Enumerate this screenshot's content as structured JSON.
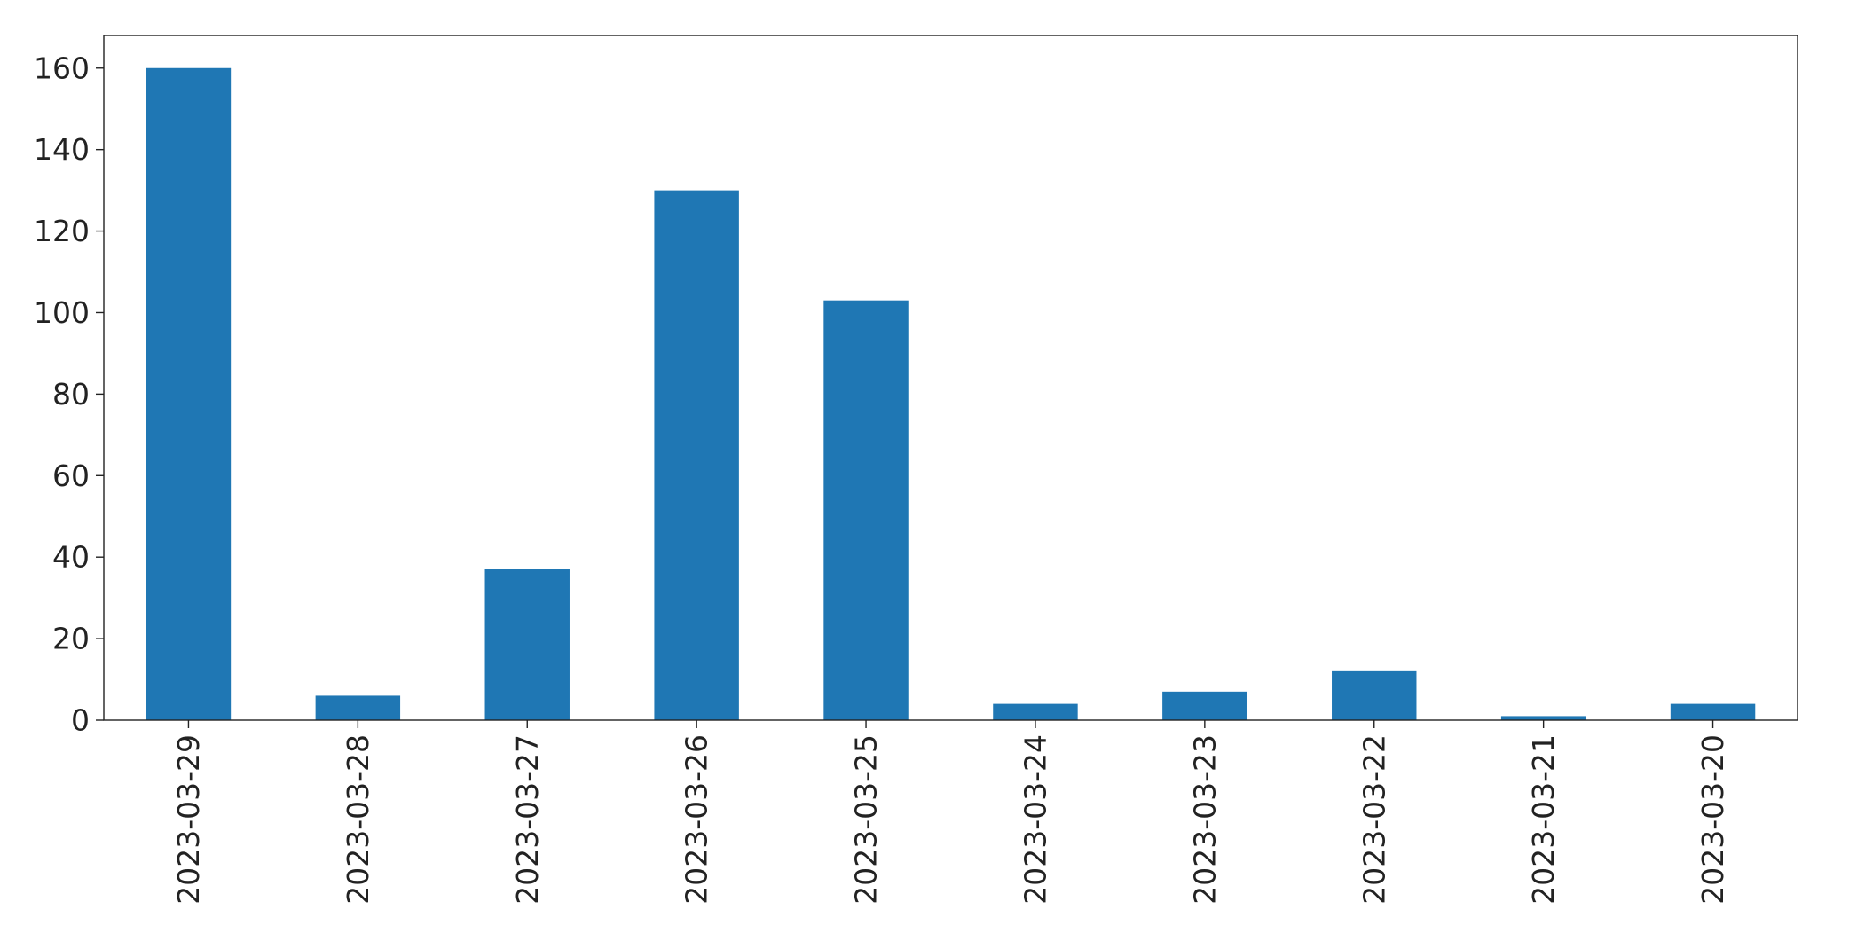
{
  "chart_data": {
    "type": "bar",
    "title": "",
    "xlabel": "",
    "ylabel": "",
    "categories": [
      "2023-03-29",
      "2023-03-28",
      "2023-03-27",
      "2023-03-26",
      "2023-03-25",
      "2023-03-24",
      "2023-03-23",
      "2023-03-22",
      "2023-03-21",
      "2023-03-20"
    ],
    "values": [
      160,
      6,
      37,
      130,
      103,
      4,
      7,
      12,
      1,
      4
    ],
    "ylim": [
      0,
      168
    ],
    "yticks": [
      0,
      20,
      40,
      60,
      80,
      100,
      120,
      140,
      160
    ],
    "ytick_labels": [
      "0",
      "20",
      "40",
      "60",
      "80",
      "100",
      "120",
      "140",
      "160"
    ],
    "bar_color": "#1f77b4",
    "grid": false,
    "legend": "none"
  }
}
